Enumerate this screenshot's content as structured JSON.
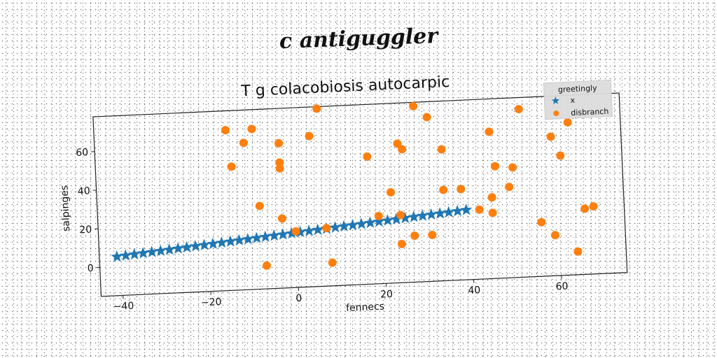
{
  "suptitle": "c antiguggler",
  "chart_data": {
    "type": "scatter",
    "title": "T g colacobiosis autocarpic",
    "xlabel": "fennecs",
    "ylabel": "salpinges",
    "xlim": [
      -45,
      75
    ],
    "ylim": [
      -15,
      78
    ],
    "xticks": [
      -40,
      -20,
      0,
      20,
      40,
      60
    ],
    "xtick_labels": [
      "−40",
      "−20",
      "0",
      "20",
      "40",
      "60"
    ],
    "yticks": [
      0,
      20,
      40,
      60
    ],
    "ytick_labels": [
      "0",
      "20",
      "40",
      "60"
    ],
    "grid": false,
    "legend": {
      "title": "greetingly",
      "placement": "top-right"
    },
    "series": [
      {
        "name": "x",
        "marker": "star",
        "color": "#1f77b4",
        "x": [
          -41,
          -39,
          -37,
          -35,
          -33,
          -31,
          -29,
          -27,
          -25,
          -23,
          -21,
          -19,
          -17,
          -15,
          -13,
          -11,
          -9,
          -7,
          -5,
          -3,
          -1,
          1,
          3,
          5,
          7,
          9,
          11,
          13,
          15,
          17,
          19,
          21,
          23,
          25,
          27,
          29,
          31,
          33,
          35,
          37,
          39
        ],
        "y": [
          5.1,
          5.5,
          5.9,
          6.3,
          6.7,
          7.1,
          7.5,
          7.9,
          8.3,
          8.7,
          9.1,
          9.5,
          9.9,
          10.3,
          10.7,
          11.1,
          11.5,
          11.9,
          12.3,
          12.7,
          13.1,
          13.5,
          13.9,
          14.3,
          14.7,
          15.1,
          15.5,
          15.9,
          16.3,
          16.7,
          17.1,
          17.5,
          17.9,
          18.3,
          18.7,
          19.1,
          19.5,
          19.9,
          20.3,
          20.7,
          21.1
        ]
      },
      {
        "name": "disbranch",
        "marker": "circle",
        "color": "#ff7f0e",
        "x": [
          -15,
          -14,
          -9,
          -8,
          -11,
          -3,
          -3,
          -3,
          4,
          6,
          -7,
          -3,
          0,
          7,
          8,
          17,
          19,
          24,
          24,
          25,
          22,
          27,
          28,
          31,
          31,
          34,
          34,
          38,
          24,
          42,
          45,
          45,
          46,
          45,
          49,
          50,
          52,
          56,
          59,
          59,
          61,
          63,
          64,
          66,
          68
        ],
        "y": [
          68,
          49,
          68,
          28,
          61,
          21,
          50,
          47,
          63,
          77,
          -3,
          60,
          14,
          15,
          -3,
          51,
          20,
          57,
          5,
          54,
          32,
          9,
          76,
          70,
          9,
          53,
          32,
          32,
          20,
          21,
          61,
          27,
          43,
          19,
          32,
          42,
          72,
          13,
          57,
          6,
          47,
          64,
          -3,
          19,
          20
        ]
      }
    ]
  }
}
